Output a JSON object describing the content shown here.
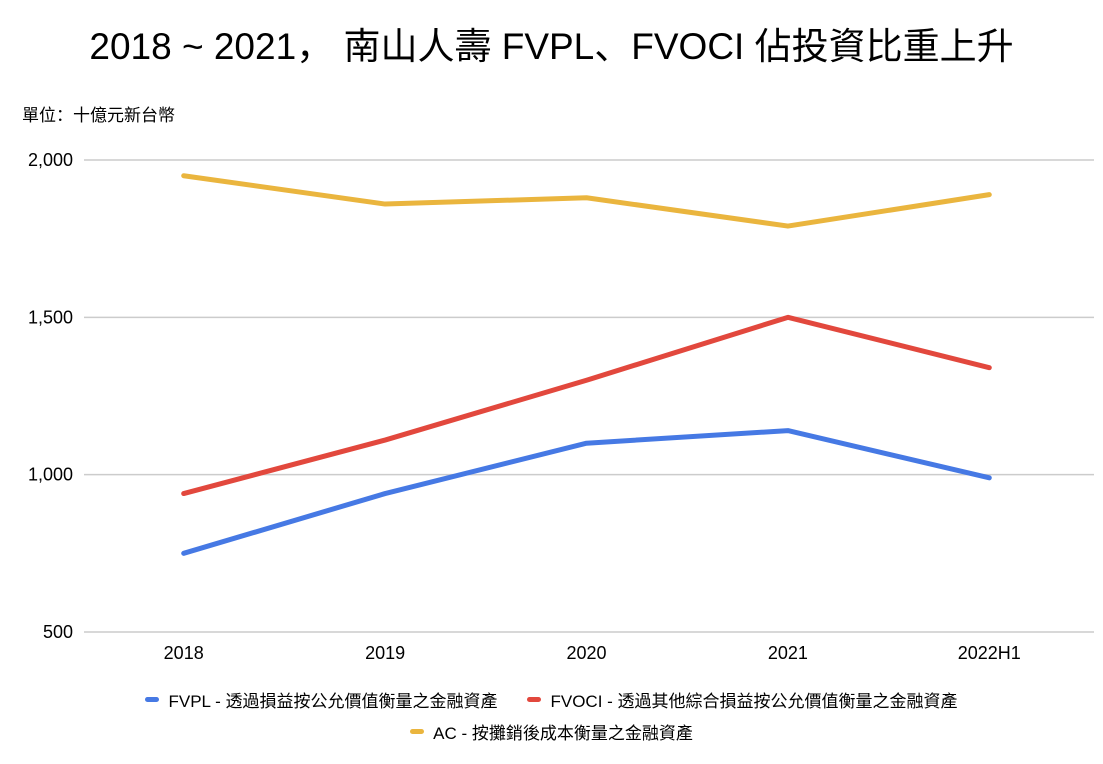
{
  "title": "2018 ~ 2021， 南山人壽 FVPL、FVOCI 佔投資比重上升",
  "unit_label": "單位：十億元新台幣",
  "colors": {
    "grid": "#cccccc",
    "text": "#000000",
    "background": "#ffffff"
  },
  "chart_data": {
    "type": "line",
    "title": "2018 ~ 2021， 南山人壽 FVPL、FVOCI 佔投資比重上升",
    "subtitle": "單位：十億元新台幣",
    "x": [
      "2018",
      "2019",
      "2020",
      "2021",
      "2022H1"
    ],
    "series": [
      {
        "name": "FVPL - 透過損益按公允價值衡量之金融資產",
        "short_name": "FVPL",
        "color": "#4679e4",
        "values": [
          750,
          940,
          1100,
          1140,
          990
        ]
      },
      {
        "name": "FVOCI - 透過其他綜合損益按公允價值衡量之金融資產",
        "short_name": "FVOCI",
        "color": "#e2483d",
        "values": [
          940,
          1110,
          1300,
          1500,
          1340
        ]
      },
      {
        "name": "AC - 按攤銷後成本衡量之金融資產",
        "short_name": "AC",
        "color": "#eab53e",
        "values": [
          1950,
          1860,
          1880,
          1790,
          1890
        ]
      }
    ],
    "yticks": [
      500,
      1000,
      1500,
      2000
    ],
    "ytick_labels": [
      "500",
      "1,000",
      "1,500",
      "2,000"
    ],
    "ylim": [
      500,
      2000
    ],
    "xlabel": "",
    "ylabel": "單位：十億元新台幣",
    "grid": true,
    "legend_position": "bottom"
  }
}
